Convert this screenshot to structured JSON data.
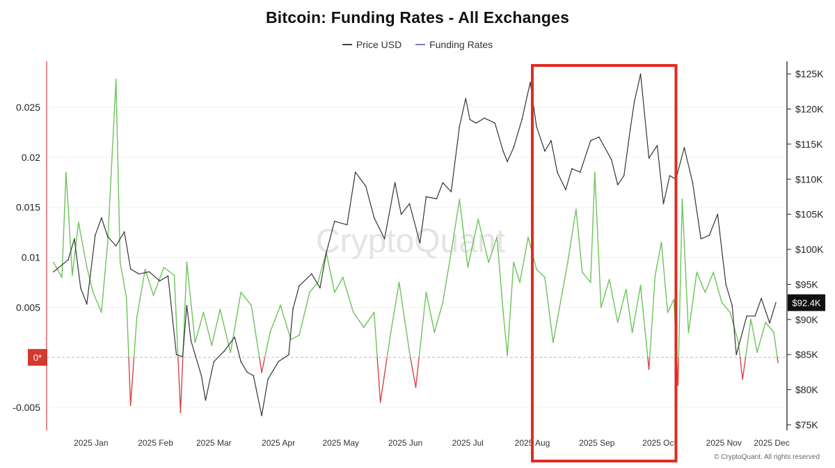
{
  "title": "Bitcoin: Funding Rates - All Exchanges",
  "legend": [
    {
      "label": "Price USD",
      "color": "#444444"
    },
    {
      "label": "Funding Rates",
      "color": "#7b7bd1"
    }
  ],
  "watermark": "CryptoQuant",
  "footer": "© CryptoQuant. All rights reserved",
  "zero_marker": "0*",
  "price_badge": "$92.4K",
  "colors": {
    "price": "#333333",
    "funding_pos": "#6cc35a",
    "funding_neg": "#d64545",
    "highlight": "#e02b20"
  },
  "chart_data": {
    "type": "line",
    "x_range": [
      "2024-12-25",
      "2025-12-15"
    ],
    "x_ticks": [
      {
        "date": "2025-01-15",
        "label": "2025 Jan"
      },
      {
        "date": "2025-02-15",
        "label": "2025 Feb"
      },
      {
        "date": "2025-03-15",
        "label": "2025 Mar"
      },
      {
        "date": "2025-04-15",
        "label": "2025 Apr"
      },
      {
        "date": "2025-05-15",
        "label": "2025 May"
      },
      {
        "date": "2025-06-15",
        "label": "2025 Jun"
      },
      {
        "date": "2025-07-15",
        "label": "2025 Jul"
      },
      {
        "date": "2025-08-15",
        "label": "2025 Aug"
      },
      {
        "date": "2025-09-15",
        "label": "2025 Sep"
      },
      {
        "date": "2025-10-15",
        "label": "2025 Oct"
      },
      {
        "date": "2025-11-15",
        "label": "2025 Nov"
      },
      {
        "date": "2025-12-08",
        "label": "2025 Dec"
      }
    ],
    "y_left": {
      "ticks": [
        -0.005,
        0.005,
        0.01,
        0.015,
        0.02,
        0.025
      ],
      "range": [
        -0.0073,
        0.0296
      ]
    },
    "y_right": {
      "ticks": [
        75000,
        80000,
        85000,
        90000,
        95000,
        100000,
        105000,
        110000,
        115000,
        120000,
        125000
      ],
      "tick_labels": [
        "$75K",
        "$80K",
        "$85K",
        "$90K",
        "$95K",
        "$100K",
        "$105K",
        "$110K",
        "$115K",
        "$120K",
        "$125K"
      ],
      "range": [
        74200,
        126800
      ]
    },
    "highlight_range": [
      "2025-08-15",
      "2025-10-23"
    ],
    "series": [
      {
        "name": "Price USD",
        "axis": "right",
        "points": [
          [
            "2024-12-28",
            96800
          ],
          [
            "2025-01-04",
            98500
          ],
          [
            "2025-01-07",
            101500
          ],
          [
            "2025-01-10",
            94500
          ],
          [
            "2025-01-13",
            92200
          ],
          [
            "2025-01-17",
            102000
          ],
          [
            "2025-01-20",
            104500
          ],
          [
            "2025-01-23",
            101800
          ],
          [
            "2025-01-27",
            100500
          ],
          [
            "2025-01-31",
            102500
          ],
          [
            "2025-02-03",
            97200
          ],
          [
            "2025-02-07",
            96500
          ],
          [
            "2025-02-12",
            96800
          ],
          [
            "2025-02-17",
            95500
          ],
          [
            "2025-02-21",
            96200
          ],
          [
            "2025-02-25",
            85000
          ],
          [
            "2025-02-28",
            84700
          ],
          [
            "2025-03-02",
            92000
          ],
          [
            "2025-03-04",
            87000
          ],
          [
            "2025-03-09",
            82000
          ],
          [
            "2025-03-11",
            78500
          ],
          [
            "2025-03-15",
            84000
          ],
          [
            "2025-03-20",
            85500
          ],
          [
            "2025-03-25",
            87500
          ],
          [
            "2025-03-28",
            84000
          ],
          [
            "2025-03-31",
            82500
          ],
          [
            "2025-04-03",
            82000
          ],
          [
            "2025-04-07",
            76300
          ],
          [
            "2025-04-10",
            81500
          ],
          [
            "2025-04-15",
            84000
          ],
          [
            "2025-04-20",
            85000
          ],
          [
            "2025-04-22",
            91500
          ],
          [
            "2025-04-25",
            94800
          ],
          [
            "2025-05-01",
            96500
          ],
          [
            "2025-05-05",
            94500
          ],
          [
            "2025-05-08",
            99500
          ],
          [
            "2025-05-12",
            104000
          ],
          [
            "2025-05-18",
            103500
          ],
          [
            "2025-05-22",
            111000
          ],
          [
            "2025-05-27",
            109000
          ],
          [
            "2025-05-31",
            104500
          ],
          [
            "2025-06-05",
            101500
          ],
          [
            "2025-06-10",
            109500
          ],
          [
            "2025-06-13",
            105000
          ],
          [
            "2025-06-17",
            106500
          ],
          [
            "2025-06-22",
            100900
          ],
          [
            "2025-06-25",
            107500
          ],
          [
            "2025-06-30",
            107200
          ],
          [
            "2025-07-03",
            109500
          ],
          [
            "2025-07-07",
            108200
          ],
          [
            "2025-07-11",
            117500
          ],
          [
            "2025-07-14",
            121500
          ],
          [
            "2025-07-16",
            118500
          ],
          [
            "2025-07-19",
            118000
          ],
          [
            "2025-07-23",
            118700
          ],
          [
            "2025-07-28",
            118000
          ],
          [
            "2025-08-01",
            114000
          ],
          [
            "2025-08-03",
            112500
          ],
          [
            "2025-08-06",
            114500
          ],
          [
            "2025-08-10",
            118500
          ],
          [
            "2025-08-14",
            123800
          ],
          [
            "2025-08-17",
            117500
          ],
          [
            "2025-08-21",
            114000
          ],
          [
            "2025-08-24",
            115500
          ],
          [
            "2025-08-27",
            111000
          ],
          [
            "2025-08-31",
            108500
          ],
          [
            "2025-09-03",
            111500
          ],
          [
            "2025-09-07",
            111000
          ],
          [
            "2025-09-12",
            115500
          ],
          [
            "2025-09-16",
            116000
          ],
          [
            "2025-09-22",
            112800
          ],
          [
            "2025-09-25",
            109200
          ],
          [
            "2025-09-28",
            110500
          ],
          [
            "2025-10-01",
            117000
          ],
          [
            "2025-10-03",
            121000
          ],
          [
            "2025-10-06",
            125000
          ],
          [
            "2025-10-10",
            113000
          ],
          [
            "2025-10-14",
            114800
          ],
          [
            "2025-10-17",
            106500
          ],
          [
            "2025-10-20",
            110500
          ],
          [
            "2025-10-23",
            110000
          ],
          [
            "2025-10-27",
            114500
          ],
          [
            "2025-10-31",
            109500
          ],
          [
            "2025-11-04",
            101500
          ],
          [
            "2025-11-08",
            102000
          ],
          [
            "2025-11-12",
            105000
          ],
          [
            "2025-11-16",
            95000
          ],
          [
            "2025-11-19",
            92000
          ],
          [
            "2025-11-21",
            85000
          ],
          [
            "2025-11-26",
            90500
          ],
          [
            "2025-11-30",
            90500
          ],
          [
            "2025-12-03",
            93000
          ],
          [
            "2025-12-07",
            89500
          ],
          [
            "2025-12-10",
            92400
          ]
        ]
      },
      {
        "name": "Funding Rates",
        "axis": "left",
        "points": [
          [
            "2024-12-28",
            0.0095
          ],
          [
            "2025-01-01",
            0.008
          ],
          [
            "2025-01-03",
            0.0185
          ],
          [
            "2025-01-06",
            0.0082
          ],
          [
            "2025-01-09",
            0.0135
          ],
          [
            "2025-01-13",
            0.009
          ],
          [
            "2025-01-16",
            0.0065
          ],
          [
            "2025-01-20",
            0.0045
          ],
          [
            "2025-01-23",
            0.0115
          ],
          [
            "2025-01-27",
            0.0278
          ],
          [
            "2025-01-29",
            0.0095
          ],
          [
            "2025-02-01",
            0.006
          ],
          [
            "2025-02-03",
            -0.0048
          ],
          [
            "2025-02-06",
            0.004
          ],
          [
            "2025-02-10",
            0.0088
          ],
          [
            "2025-02-14",
            0.0062
          ],
          [
            "2025-02-19",
            0.009
          ],
          [
            "2025-02-24",
            0.0082
          ],
          [
            "2025-02-27",
            -0.0055
          ],
          [
            "2025-03-02",
            0.0095
          ],
          [
            "2025-03-06",
            0.0015
          ],
          [
            "2025-03-10",
            0.0045
          ],
          [
            "2025-03-14",
            0.0012
          ],
          [
            "2025-03-18",
            0.0048
          ],
          [
            "2025-03-23",
            0.0005
          ],
          [
            "2025-03-28",
            0.0065
          ],
          [
            "2025-04-02",
            0.0052
          ],
          [
            "2025-04-07",
            -0.0015
          ],
          [
            "2025-04-11",
            0.0025
          ],
          [
            "2025-04-16",
            0.0052
          ],
          [
            "2025-04-21",
            0.0018
          ],
          [
            "2025-04-25",
            0.0022
          ],
          [
            "2025-04-30",
            0.0065
          ],
          [
            "2025-05-04",
            0.0075
          ],
          [
            "2025-05-08",
            0.0105
          ],
          [
            "2025-05-12",
            0.0065
          ],
          [
            "2025-05-16",
            0.008
          ],
          [
            "2025-05-21",
            0.0045
          ],
          [
            "2025-05-26",
            0.003
          ],
          [
            "2025-05-31",
            0.0045
          ],
          [
            "2025-06-03",
            -0.0045
          ],
          [
            "2025-06-08",
            0.0025
          ],
          [
            "2025-06-12",
            0.0075
          ],
          [
            "2025-06-17",
            0.0005
          ],
          [
            "2025-06-20",
            -0.003
          ],
          [
            "2025-06-25",
            0.0065
          ],
          [
            "2025-06-29",
            0.0025
          ],
          [
            "2025-07-03",
            0.0055
          ],
          [
            "2025-07-07",
            0.0105
          ],
          [
            "2025-07-11",
            0.0158
          ],
          [
            "2025-07-15",
            0.009
          ],
          [
            "2025-07-20",
            0.0138
          ],
          [
            "2025-07-25",
            0.0095
          ],
          [
            "2025-07-29",
            0.012
          ],
          [
            "2025-08-01",
            0.0045
          ],
          [
            "2025-08-03",
            0.0002
          ],
          [
            "2025-08-06",
            0.0095
          ],
          [
            "2025-08-09",
            0.0075
          ],
          [
            "2025-08-13",
            0.012
          ],
          [
            "2025-08-17",
            0.0088
          ],
          [
            "2025-08-21",
            0.008
          ],
          [
            "2025-08-25",
            0.0015
          ],
          [
            "2025-09-01",
            0.0095
          ],
          [
            "2025-09-05",
            0.0148
          ],
          [
            "2025-09-08",
            0.0085
          ],
          [
            "2025-09-12",
            0.0075
          ],
          [
            "2025-09-14",
            0.0185
          ],
          [
            "2025-09-17",
            0.005
          ],
          [
            "2025-09-21",
            0.0078
          ],
          [
            "2025-09-25",
            0.0035
          ],
          [
            "2025-09-29",
            0.0068
          ],
          [
            "2025-10-02",
            0.0025
          ],
          [
            "2025-10-06",
            0.0072
          ],
          [
            "2025-10-10",
            -0.0012
          ],
          [
            "2025-10-13",
            0.0082
          ],
          [
            "2025-10-16",
            0.0115
          ],
          [
            "2025-10-19",
            0.0045
          ],
          [
            "2025-10-22",
            0.0058
          ],
          [
            "2025-10-24",
            -0.0028
          ],
          [
            "2025-10-26",
            0.0158
          ],
          [
            "2025-10-29",
            0.0025
          ],
          [
            "2025-11-02",
            0.0085
          ],
          [
            "2025-11-06",
            0.0065
          ],
          [
            "2025-11-10",
            0.0085
          ],
          [
            "2025-11-14",
            0.0055
          ],
          [
            "2025-11-18",
            0.0045
          ],
          [
            "2025-11-22",
            0.0015
          ],
          [
            "2025-11-24",
            -0.0022
          ],
          [
            "2025-11-28",
            0.0038
          ],
          [
            "2025-12-01",
            0.0005
          ],
          [
            "2025-12-05",
            0.0035
          ],
          [
            "2025-12-09",
            0.0025
          ],
          [
            "2025-12-11",
            -0.0005
          ]
        ]
      }
    ]
  }
}
